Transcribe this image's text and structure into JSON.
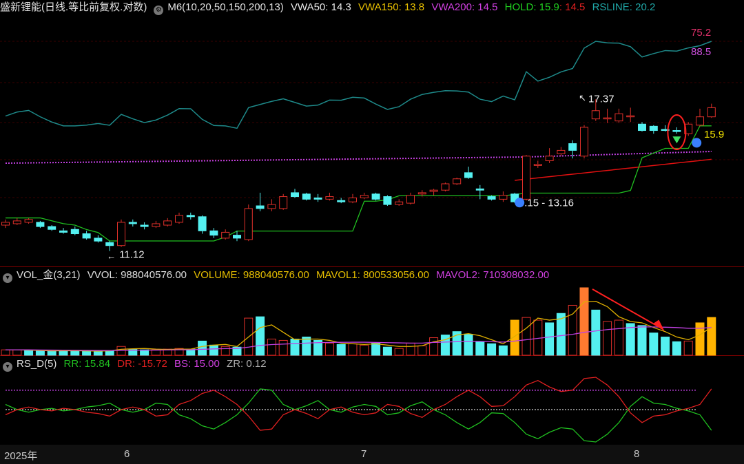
{
  "header_main": {
    "title": "盛新锂能(日线.等比前复权.对数)",
    "indicator": "M6(10,20,50,150,200,13)",
    "vwa50": "VWA50: 14.3",
    "vwa150": "VWA150: 13.8",
    "vwa200": "VWA200: 14.5",
    "hold": "HOLD: 15.9",
    "hold2": ": 14.5",
    "rsline": "RSLINE: 20.2"
  },
  "header_vol": {
    "name": "VOL_金(3,21)",
    "vvol": "VVOL: 988040576.00",
    "volume": "VOLUME: 988040576.00",
    "mavol1": "MAVOL1: 800533056.00",
    "mavol2": "MAVOL2: 710308032.00"
  },
  "header_rs": {
    "name": "RS_D(5)",
    "rr": "RR: 15.84",
    "dr": "DR: -15.72",
    "bs": "BS: 15.00",
    "zr": "ZR: 0.12"
  },
  "x_axis": {
    "labels": [
      "2025年",
      "6",
      "7",
      "8"
    ]
  },
  "colors": {
    "up": "#e0302a",
    "down": "#54f0f0",
    "rsline": "#1e8a8a",
    "vwa200": "#c040e0",
    "hold": "#20c020",
    "red_line": "#e01010",
    "vol_yellow": "#ffb300",
    "vol_orange": "#ff7a30",
    "mavol1": "#e0b000",
    "mavol2": "#c040e0"
  },
  "chart_data": {
    "type": "candlestick",
    "price_scale": "log",
    "annotations": [
      {
        "text": "17.37",
        "kind": "high"
      },
      {
        "text": "11.12",
        "kind": "low"
      },
      {
        "text": ".15 - 13.16",
        "kind": "range"
      },
      {
        "text": "15.9",
        "kind": "hold"
      },
      {
        "text": "75.2",
        "kind": "rsline_value"
      },
      {
        "text": "88.5",
        "kind": "rsline_rank"
      }
    ],
    "candles": [
      {
        "o": 12.0,
        "c": 12.1,
        "h": 12.2,
        "l": 11.9
      },
      {
        "o": 12.05,
        "c": 12.15,
        "h": 12.25,
        "l": 12.0
      },
      {
        "o": 12.1,
        "c": 12.2,
        "h": 12.25,
        "l": 12.05
      },
      {
        "o": 12.1,
        "c": 11.95,
        "h": 12.15,
        "l": 11.9
      },
      {
        "o": 11.95,
        "c": 11.85,
        "h": 12.0,
        "l": 11.8
      },
      {
        "o": 11.8,
        "c": 11.75,
        "h": 11.9,
        "l": 11.7
      },
      {
        "o": 11.85,
        "c": 11.7,
        "h": 11.95,
        "l": 11.65
      },
      {
        "o": 11.7,
        "c": 11.55,
        "h": 11.8,
        "l": 11.5
      },
      {
        "o": 11.55,
        "c": 11.45,
        "h": 11.65,
        "l": 11.4
      },
      {
        "o": 11.4,
        "c": 11.3,
        "h": 11.45,
        "l": 11.12
      },
      {
        "o": 11.3,
        "c": 12.1,
        "h": 12.2,
        "l": 11.25
      },
      {
        "o": 12.1,
        "c": 12.05,
        "h": 12.2,
        "l": 11.95
      },
      {
        "o": 12.0,
        "c": 11.95,
        "h": 12.1,
        "l": 11.85
      },
      {
        "o": 11.95,
        "c": 12.05,
        "h": 12.15,
        "l": 11.9
      },
      {
        "o": 12.0,
        "c": 12.15,
        "h": 12.25,
        "l": 11.95
      },
      {
        "o": 12.1,
        "c": 12.35,
        "h": 12.45,
        "l": 12.05
      },
      {
        "o": 12.35,
        "c": 12.3,
        "h": 12.45,
        "l": 12.2
      },
      {
        "o": 12.3,
        "c": 11.8,
        "h": 12.35,
        "l": 11.7
      },
      {
        "o": 11.8,
        "c": 11.65,
        "h": 11.9,
        "l": 11.55
      },
      {
        "o": 11.55,
        "c": 11.75,
        "h": 11.85,
        "l": 11.5
      },
      {
        "o": 11.65,
        "c": 11.55,
        "h": 11.8,
        "l": 11.45
      },
      {
        "o": 11.5,
        "c": 12.6,
        "h": 12.75,
        "l": 11.45
      },
      {
        "o": 12.7,
        "c": 12.6,
        "h": 13.2,
        "l": 12.5
      },
      {
        "o": 12.6,
        "c": 12.75,
        "h": 12.95,
        "l": 12.5
      },
      {
        "o": 12.6,
        "c": 13.05,
        "h": 13.15,
        "l": 12.55
      },
      {
        "o": 13.2,
        "c": 13.05,
        "h": 13.35,
        "l": 13.0
      },
      {
        "o": 13.15,
        "c": 12.95,
        "h": 13.2,
        "l": 12.9
      },
      {
        "o": 13.0,
        "c": 12.95,
        "h": 13.15,
        "l": 12.85
      },
      {
        "o": 12.95,
        "c": 13.05,
        "h": 13.2,
        "l": 12.9
      },
      {
        "o": 12.9,
        "c": 12.85,
        "h": 13.0,
        "l": 12.8
      },
      {
        "o": 12.85,
        "c": 13.0,
        "h": 13.15,
        "l": 12.8
      },
      {
        "o": 13.0,
        "c": 13.1,
        "h": 13.2,
        "l": 12.95
      },
      {
        "o": 13.15,
        "c": 12.95,
        "h": 13.2,
        "l": 12.9
      },
      {
        "o": 13.05,
        "c": 12.75,
        "h": 13.1,
        "l": 12.7
      },
      {
        "o": 12.75,
        "c": 12.85,
        "h": 12.95,
        "l": 12.7
      },
      {
        "o": 12.8,
        "c": 13.1,
        "h": 13.2,
        "l": 12.75
      },
      {
        "o": 13.15,
        "c": 13.2,
        "h": 13.3,
        "l": 13.05
      },
      {
        "o": 13.25,
        "c": 13.3,
        "h": 13.35,
        "l": 13.1
      },
      {
        "o": 13.3,
        "c": 13.55,
        "h": 13.6,
        "l": 13.25
      },
      {
        "o": 13.55,
        "c": 13.75,
        "h": 13.8,
        "l": 13.5
      },
      {
        "o": 14.0,
        "c": 13.8,
        "h": 14.25,
        "l": 13.75
      },
      {
        "o": 13.35,
        "c": 13.3,
        "h": 13.5,
        "l": 12.95
      },
      {
        "o": 13.05,
        "c": 12.95,
        "h": 13.1,
        "l": 12.9
      },
      {
        "o": 12.95,
        "c": 13.1,
        "h": 13.25,
        "l": 12.85
      },
      {
        "o": 13.15,
        "c": 12.85,
        "h": 13.2,
        "l": 12.8
      },
      {
        "o": 12.95,
        "c": 14.7,
        "h": 14.75,
        "l": 12.9
      },
      {
        "o": 14.3,
        "c": 14.35,
        "h": 14.5,
        "l": 14.2
      },
      {
        "o": 14.5,
        "c": 14.7,
        "h": 15.05,
        "l": 14.4
      },
      {
        "o": 14.8,
        "c": 14.95,
        "h": 15.1,
        "l": 14.7
      },
      {
        "o": 15.25,
        "c": 14.95,
        "h": 15.4,
        "l": 14.6
      },
      {
        "o": 14.7,
        "c": 16.0,
        "h": 16.1,
        "l": 14.6
      },
      {
        "o": 16.4,
        "c": 16.8,
        "h": 17.37,
        "l": 16.3
      },
      {
        "o": 16.45,
        "c": 16.45,
        "h": 16.9,
        "l": 16.2
      },
      {
        "o": 16.3,
        "c": 16.65,
        "h": 16.9,
        "l": 16.2
      },
      {
        "o": 16.55,
        "c": 16.55,
        "h": 16.95,
        "l": 16.25
      },
      {
        "o": 16.15,
        "c": 15.85,
        "h": 16.25,
        "l": 15.8
      },
      {
        "o": 16.05,
        "c": 15.85,
        "h": 16.1,
        "l": 15.7
      },
      {
        "o": 15.9,
        "c": 15.85,
        "h": 16.1,
        "l": 15.8
      },
      {
        "o": 15.85,
        "c": 15.8,
        "h": 16.0,
        "l": 15.7
      },
      {
        "o": 15.7,
        "c": 16.15,
        "h": 16.25,
        "l": 15.6
      },
      {
        "o": 16.1,
        "c": 16.5,
        "h": 16.9,
        "l": 16.05
      },
      {
        "o": 16.5,
        "c": 16.95,
        "h": 17.15,
        "l": 16.45
      }
    ],
    "volume": [
      {
        "v": 0.08,
        "up": true
      },
      {
        "v": 0.08,
        "up": true
      },
      {
        "v": 0.07,
        "up": false
      },
      {
        "v": 0.07,
        "up": false
      },
      {
        "v": 0.06,
        "up": false
      },
      {
        "v": 0.07,
        "up": false
      },
      {
        "v": 0.07,
        "up": false
      },
      {
        "v": 0.06,
        "up": false
      },
      {
        "v": 0.06,
        "up": false
      },
      {
        "v": 0.07,
        "up": false
      },
      {
        "v": 0.13,
        "up": true
      },
      {
        "v": 0.09,
        "up": false
      },
      {
        "v": 0.08,
        "up": false
      },
      {
        "v": 0.08,
        "up": true
      },
      {
        "v": 0.09,
        "up": true
      },
      {
        "v": 0.1,
        "up": true
      },
      {
        "v": 0.09,
        "up": false
      },
      {
        "v": 0.21,
        "up": false
      },
      {
        "v": 0.15,
        "up": false
      },
      {
        "v": 0.13,
        "up": true
      },
      {
        "v": 0.12,
        "up": false
      },
      {
        "v": 0.55,
        "up": true
      },
      {
        "v": 0.57,
        "up": false
      },
      {
        "v": 0.24,
        "up": true
      },
      {
        "v": 0.22,
        "up": true
      },
      {
        "v": 0.24,
        "up": false
      },
      {
        "v": 0.27,
        "up": false
      },
      {
        "v": 0.22,
        "up": false
      },
      {
        "v": 0.18,
        "up": true
      },
      {
        "v": 0.16,
        "up": false
      },
      {
        "v": 0.17,
        "up": true
      },
      {
        "v": 0.15,
        "up": true
      },
      {
        "v": 0.18,
        "up": false
      },
      {
        "v": 0.12,
        "up": false
      },
      {
        "v": 0.1,
        "up": true
      },
      {
        "v": 0.18,
        "up": true
      },
      {
        "v": 0.14,
        "up": true
      },
      {
        "v": 0.26,
        "up": true
      },
      {
        "v": 0.3,
        "up": false
      },
      {
        "v": 0.35,
        "up": false
      },
      {
        "v": 0.31,
        "up": false
      },
      {
        "v": 0.2,
        "up": false
      },
      {
        "v": 0.17,
        "up": false
      },
      {
        "v": 0.14,
        "up": false
      },
      {
        "v": 0.52,
        "up": true,
        "hl": "yellow"
      },
      {
        "v": 0.56,
        "up": true
      },
      {
        "v": 0.52,
        "up": true
      },
      {
        "v": 0.48,
        "up": false
      },
      {
        "v": 0.62,
        "up": false
      },
      {
        "v": 0.74,
        "up": true
      },
      {
        "v": 1.0,
        "up": true,
        "hl": "orange"
      },
      {
        "v": 0.67,
        "up": false
      },
      {
        "v": 0.5,
        "up": true
      },
      {
        "v": 0.52,
        "up": true
      },
      {
        "v": 0.47,
        "up": false
      },
      {
        "v": 0.44,
        "up": false
      },
      {
        "v": 0.33,
        "up": false
      },
      {
        "v": 0.27,
        "up": false
      },
      {
        "v": 0.2,
        "up": false
      },
      {
        "v": 0.21,
        "up": true
      },
      {
        "v": 0.48,
        "up": true,
        "hl": "yellow"
      },
      {
        "v": 0.56,
        "up": true,
        "hl": "yellow"
      }
    ],
    "mavol1": [
      0.08,
      0.08,
      0.075,
      0.07,
      0.065,
      0.067,
      0.068,
      0.064,
      0.062,
      0.065,
      0.088,
      0.095,
      0.1,
      0.09,
      0.085,
      0.09,
      0.09,
      0.13,
      0.15,
      0.16,
      0.13,
      0.27,
      0.41,
      0.45,
      0.34,
      0.23,
      0.24,
      0.24,
      0.22,
      0.18,
      0.17,
      0.16,
      0.17,
      0.15,
      0.13,
      0.13,
      0.14,
      0.2,
      0.23,
      0.3,
      0.32,
      0.29,
      0.23,
      0.17,
      0.28,
      0.4,
      0.55,
      0.52,
      0.54,
      0.61,
      0.79,
      0.8,
      0.72,
      0.57,
      0.5,
      0.48,
      0.41,
      0.35,
      0.27,
      0.23,
      0.3,
      0.42
    ],
    "mavol2": [
      0.08,
      0.08,
      0.08,
      0.078,
      0.076,
      0.075,
      0.074,
      0.072,
      0.071,
      0.07,
      0.072,
      0.074,
      0.075,
      0.076,
      0.078,
      0.08,
      0.081,
      0.088,
      0.094,
      0.098,
      0.1,
      0.12,
      0.145,
      0.158,
      0.165,
      0.172,
      0.18,
      0.186,
      0.19,
      0.192,
      0.193,
      0.193,
      0.19,
      0.186,
      0.183,
      0.18,
      0.18,
      0.19,
      0.195,
      0.2,
      0.205,
      0.205,
      0.2,
      0.195,
      0.21,
      0.23,
      0.25,
      0.27,
      0.29,
      0.31,
      0.34,
      0.36,
      0.38,
      0.395,
      0.41,
      0.42,
      0.42,
      0.415,
      0.41,
      0.4,
      0.4,
      0.41
    ],
    "rs_series": {
      "RR": [
        0.58,
        0.5,
        0.46,
        0.5,
        0.52,
        0.48,
        0.5,
        0.54,
        0.56,
        0.6,
        0.5,
        0.46,
        0.5,
        0.6,
        0.58,
        0.42,
        0.36,
        0.25,
        0.2,
        0.3,
        0.42,
        0.6,
        0.82,
        0.8,
        0.58,
        0.5,
        0.56,
        0.64,
        0.5,
        0.46,
        0.54,
        0.58,
        0.55,
        0.42,
        0.45,
        0.56,
        0.62,
        0.5,
        0.42,
        0.3,
        0.2,
        0.3,
        0.45,
        0.44,
        0.3,
        0.12,
        0.05,
        0.15,
        0.22,
        0.2,
        0.02,
        0.0,
        0.12,
        0.3,
        0.55,
        0.7,
        0.6,
        0.58,
        0.52,
        0.48,
        0.42,
        0.18
      ],
      "DR": [
        0.42,
        0.5,
        0.54,
        0.5,
        0.48,
        0.52,
        0.5,
        0.46,
        0.44,
        0.4,
        0.5,
        0.54,
        0.5,
        0.4,
        0.42,
        0.58,
        0.64,
        0.75,
        0.8,
        0.7,
        0.58,
        0.4,
        0.18,
        0.2,
        0.42,
        0.5,
        0.44,
        0.36,
        0.5,
        0.54,
        0.46,
        0.42,
        0.45,
        0.58,
        0.55,
        0.44,
        0.38,
        0.5,
        0.58,
        0.7,
        0.8,
        0.7,
        0.55,
        0.56,
        0.7,
        0.88,
        0.95,
        0.85,
        0.78,
        0.8,
        0.98,
        1.0,
        0.88,
        0.7,
        0.45,
        0.3,
        0.4,
        0.42,
        0.48,
        0.52,
        0.58,
        0.82
      ],
      "BS_level": 0.8,
      "ZR_level": 0.5
    }
  }
}
